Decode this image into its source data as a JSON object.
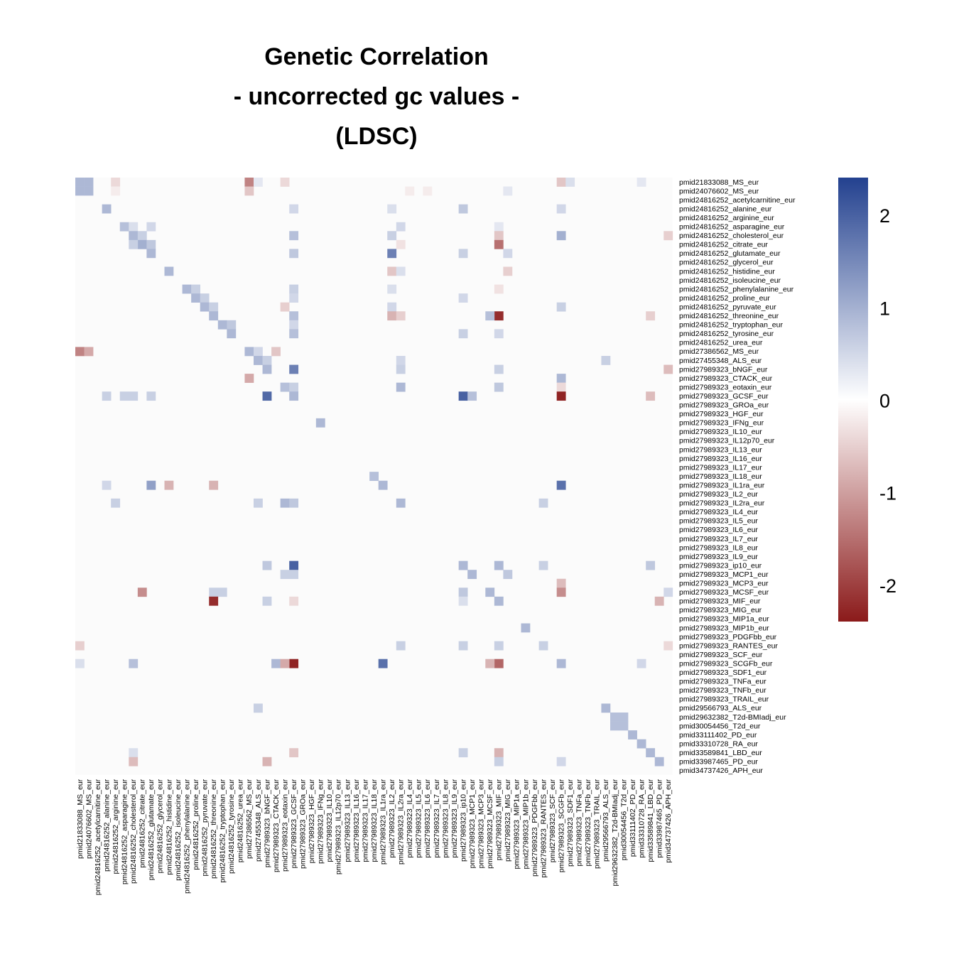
{
  "chart_data": {
    "type": "heatmap",
    "title_lines": [
      "Genetic Correlation",
      "- uncorrected gc values -",
      "(LDSC)"
    ],
    "labels": [
      "pmid21833088_MS_eur",
      "pmid24076602_MS_eur",
      "pmid24816252_acetylcarnitine_eur",
      "pmid24816252_alanine_eur",
      "pmid24816252_arginine_eur",
      "pmid24816252_asparagine_eur",
      "pmid24816252_cholesterol_eur",
      "pmid24816252_citrate_eur",
      "pmid24816252_glutamate_eur",
      "pmid24816252_glycerol_eur",
      "pmid24816252_histidine_eur",
      "pmid24816252_isoleucine_eur",
      "pmid24816252_phenylalanine_eur",
      "pmid24816252_proline_eur",
      "pmid24816252_pyruvate_eur",
      "pmid24816252_threonine_eur",
      "pmid24816252_tryptophan_eur",
      "pmid24816252_tyrosine_eur",
      "pmid24816252_urea_eur",
      "pmid27386562_MS_eur",
      "pmid27455348_ALS_eur",
      "pmid27989323_bNGF_eur",
      "pmid27989323_CTACK_eur",
      "pmid27989323_eotaxin_eur",
      "pmid27989323_GCSF_eur",
      "pmid27989323_GROa_eur",
      "pmid27989323_HGF_eur",
      "pmid27989323_IFNg_eur",
      "pmid27989323_IL10_eur",
      "pmid27989323_IL12p70_eur",
      "pmid27989323_IL13_eur",
      "pmid27989323_IL16_eur",
      "pmid27989323_IL17_eur",
      "pmid27989323_IL18_eur",
      "pmid27989323_IL1ra_eur",
      "pmid27989323_IL2_eur",
      "pmid27989323_IL2ra_eur",
      "pmid27989323_IL4_eur",
      "pmid27989323_IL5_eur",
      "pmid27989323_IL6_eur",
      "pmid27989323_IL7_eur",
      "pmid27989323_IL8_eur",
      "pmid27989323_IL9_eur",
      "pmid27989323_ip10_eur",
      "pmid27989323_MCP1_eur",
      "pmid27989323_MCP3_eur",
      "pmid27989323_MCSF_eur",
      "pmid27989323_MIF_eur",
      "pmid27989323_MIG_eur",
      "pmid27989323_MIP1a_eur",
      "pmid27989323_MIP1b_eur",
      "pmid27989323_PDGFbb_eur",
      "pmid27989323_RANTES_eur",
      "pmid27989323_SCF_eur",
      "pmid27989323_SCGFb_eur",
      "pmid27989323_SDF1_eur",
      "pmid27989323_TNFa_eur",
      "pmid27989323_TNFb_eur",
      "pmid27989323_TRAIL_eur",
      "pmid29566793_ALS_eur",
      "pmid29632382_T2d-BMIadj_eur",
      "pmid30054456_T2d_eur",
      "pmid33111402_PD_eur",
      "pmid33310728_RA_eur",
      "pmid33589841_LBD_eur",
      "pmid33987465_PD_eur",
      "pmid34737426_APH_eur"
    ],
    "cells": [
      [
        0,
        0,
        0.9
      ],
      [
        0,
        1,
        0.9
      ],
      [
        1,
        0,
        0.9
      ],
      [
        1,
        1,
        0.9
      ],
      [
        0,
        4,
        -0.4
      ],
      [
        0,
        19,
        -1.3
      ],
      [
        0,
        20,
        0.3
      ],
      [
        0,
        23,
        -0.4
      ],
      [
        0,
        54,
        -0.6
      ],
      [
        0,
        55,
        0.4
      ],
      [
        0,
        63,
        0.3
      ],
      [
        1,
        4,
        -0.2
      ],
      [
        1,
        19,
        -0.6
      ],
      [
        1,
        37,
        -0.2
      ],
      [
        1,
        39,
        -0.2
      ],
      [
        1,
        48,
        0.3
      ],
      [
        3,
        3,
        0.9
      ],
      [
        3,
        43,
        0.7
      ],
      [
        3,
        35,
        0.4
      ],
      [
        3,
        24,
        0.5
      ],
      [
        3,
        54,
        0.5
      ],
      [
        5,
        5,
        0.8
      ],
      [
        5,
        6,
        0.4
      ],
      [
        5,
        8,
        0.5
      ],
      [
        5,
        36,
        0.5
      ],
      [
        5,
        47,
        0.3
      ],
      [
        6,
        6,
        0.9
      ],
      [
        6,
        7,
        0.6
      ],
      [
        6,
        24,
        0.8
      ],
      [
        6,
        35,
        0.6
      ],
      [
        6,
        54,
        1.0
      ],
      [
        6,
        66,
        -0.5
      ],
      [
        6,
        47,
        -0.6
      ],
      [
        7,
        7,
        1.0
      ],
      [
        7,
        6,
        0.6
      ],
      [
        7,
        8,
        0.7
      ],
      [
        7,
        47,
        -1.5
      ],
      [
        7,
        36,
        -0.3
      ],
      [
        8,
        8,
        0.9
      ],
      [
        8,
        35,
        1.6
      ],
      [
        8,
        24,
        0.7
      ],
      [
        8,
        43,
        0.6
      ],
      [
        8,
        48,
        0.5
      ],
      [
        10,
        10,
        0.9
      ],
      [
        10,
        35,
        -0.6
      ],
      [
        10,
        48,
        -0.5
      ],
      [
        10,
        36,
        0.4
      ],
      [
        12,
        12,
        0.9
      ],
      [
        12,
        13,
        0.6
      ],
      [
        12,
        24,
        0.6
      ],
      [
        12,
        35,
        0.4
      ],
      [
        12,
        47,
        -0.3
      ],
      [
        13,
        13,
        0.9
      ],
      [
        13,
        14,
        0.6
      ],
      [
        13,
        24,
        0.5
      ],
      [
        13,
        43,
        0.5
      ],
      [
        14,
        14,
        0.9
      ],
      [
        14,
        15,
        0.6
      ],
      [
        14,
        23,
        -0.5
      ],
      [
        14,
        35,
        0.5
      ],
      [
        14,
        54,
        0.6
      ],
      [
        15,
        15,
        0.9
      ],
      [
        15,
        35,
        -0.8
      ],
      [
        15,
        47,
        -2.2
      ],
      [
        15,
        46,
        0.8
      ],
      [
        15,
        24,
        0.8
      ],
      [
        15,
        64,
        -0.5
      ],
      [
        15,
        36,
        -0.5
      ],
      [
        16,
        16,
        0.9
      ],
      [
        16,
        17,
        0.7
      ],
      [
        16,
        24,
        0.5
      ],
      [
        17,
        17,
        0.9
      ],
      [
        17,
        24,
        0.8
      ],
      [
        17,
        43,
        0.6
      ],
      [
        17,
        47,
        0.5
      ],
      [
        19,
        0,
        -1.3
      ],
      [
        19,
        1,
        -0.9
      ],
      [
        19,
        19,
        0.9
      ],
      [
        19,
        20,
        0.5
      ],
      [
        19,
        22,
        -0.6
      ],
      [
        20,
        20,
        0.9
      ],
      [
        20,
        21,
        0.6
      ],
      [
        20,
        36,
        0.5
      ],
      [
        20,
        59,
        0.6
      ],
      [
        21,
        21,
        0.9
      ],
      [
        21,
        24,
        1.6
      ],
      [
        21,
        36,
        0.6
      ],
      [
        21,
        66,
        -0.7
      ],
      [
        21,
        47,
        0.6
      ],
      [
        22,
        19,
        -0.9
      ],
      [
        22,
        54,
        0.9
      ],
      [
        23,
        23,
        0.8
      ],
      [
        23,
        24,
        0.6
      ],
      [
        23,
        36,
        0.9
      ],
      [
        23,
        47,
        0.7
      ],
      [
        23,
        54,
        -0.4
      ],
      [
        24,
        24,
        0.9
      ],
      [
        24,
        21,
        1.9
      ],
      [
        24,
        43,
        2.0
      ],
      [
        24,
        44,
        0.8
      ],
      [
        24,
        54,
        -2.3
      ],
      [
        24,
        64,
        -0.7
      ],
      [
        24,
        3,
        0.6
      ],
      [
        24,
        5,
        0.6
      ],
      [
        24,
        6,
        0.6
      ],
      [
        24,
        8,
        0.6
      ],
      [
        27,
        27,
        0.9
      ],
      [
        34,
        34,
        0.9
      ],
      [
        33,
        33,
        0.8
      ],
      [
        34,
        3,
        0.5
      ],
      [
        34,
        8,
        1.2
      ],
      [
        34,
        10,
        -0.8
      ],
      [
        34,
        15,
        -0.8
      ],
      [
        34,
        54,
        1.8
      ],
      [
        36,
        36,
        0.9
      ],
      [
        36,
        4,
        0.6
      ],
      [
        36,
        20,
        0.6
      ],
      [
        36,
        23,
        0.9
      ],
      [
        36,
        24,
        0.7
      ],
      [
        36,
        52,
        0.6
      ],
      [
        43,
        43,
        0.9
      ],
      [
        43,
        24,
        2.0
      ],
      [
        43,
        21,
        0.7
      ],
      [
        43,
        47,
        0.9
      ],
      [
        43,
        64,
        0.7
      ],
      [
        43,
        52,
        0.6
      ],
      [
        44,
        44,
        0.9
      ],
      [
        44,
        23,
        0.6
      ],
      [
        44,
        24,
        0.6
      ],
      [
        44,
        48,
        0.7
      ],
      [
        45,
        54,
        -0.7
      ],
      [
        46,
        46,
        0.9
      ],
      [
        46,
        7,
        -1.2
      ],
      [
        46,
        15,
        0.6
      ],
      [
        46,
        16,
        0.6
      ],
      [
        46,
        43,
        0.7
      ],
      [
        46,
        54,
        -1.2
      ],
      [
        46,
        66,
        0.5
      ],
      [
        47,
        47,
        0.9
      ],
      [
        47,
        15,
        -2.2
      ],
      [
        47,
        21,
        0.6
      ],
      [
        47,
        24,
        -0.4
      ],
      [
        47,
        65,
        -0.8
      ],
      [
        47,
        43,
        0.4
      ],
      [
        50,
        50,
        0.9
      ],
      [
        52,
        0,
        -0.5
      ],
      [
        52,
        36,
        0.6
      ],
      [
        52,
        43,
        0.6
      ],
      [
        52,
        47,
        0.6
      ],
      [
        52,
        52,
        0.6
      ],
      [
        52,
        66,
        -0.4
      ],
      [
        54,
        54,
        0.9
      ],
      [
        54,
        24,
        -2.3
      ],
      [
        54,
        34,
        1.8
      ],
      [
        54,
        22,
        0.9
      ],
      [
        54,
        23,
        -0.9
      ],
      [
        54,
        47,
        -1.6
      ],
      [
        54,
        46,
        -0.8
      ],
      [
        54,
        6,
        0.8
      ],
      [
        54,
        0,
        0.4
      ],
      [
        54,
        63,
        0.5
      ],
      [
        59,
        59,
        0.9
      ],
      [
        59,
        20,
        0.6
      ],
      [
        60,
        60,
        0.8
      ],
      [
        61,
        61,
        0.8
      ],
      [
        60,
        61,
        0.8
      ],
      [
        61,
        60,
        0.8
      ],
      [
        62,
        62,
        0.9
      ],
      [
        63,
        63,
        0.9
      ],
      [
        64,
        64,
        0.9
      ],
      [
        64,
        24,
        -0.6
      ],
      [
        64,
        43,
        0.6
      ],
      [
        64,
        47,
        -0.8
      ],
      [
        64,
        6,
        0.4
      ],
      [
        65,
        65,
        0.9
      ],
      [
        65,
        6,
        -0.7
      ],
      [
        65,
        21,
        -0.8
      ],
      [
        65,
        47,
        0.6
      ],
      [
        65,
        54,
        0.5
      ]
    ],
    "color_scale": {
      "low": "#8b1a1a",
      "mid": "#ffffff",
      "high": "#23418f",
      "min": -2.4,
      "max": 2.4
    },
    "legend_ticks": [
      2,
      1,
      0,
      -1,
      -2
    ],
    "legend_tick_labels": [
      "2",
      "1",
      "0",
      "-1",
      "-2"
    ]
  }
}
